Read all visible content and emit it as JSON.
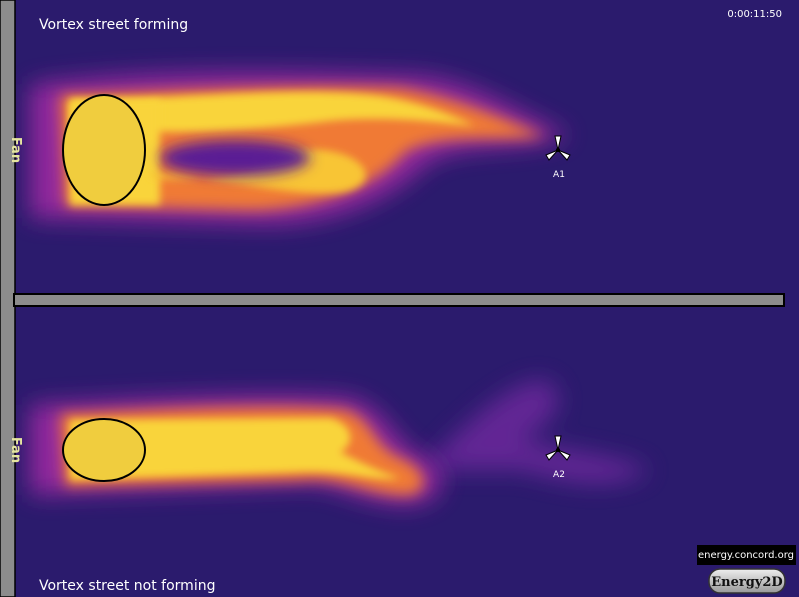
{
  "header": {
    "time": "0:00:11:50"
  },
  "panels": [
    {
      "caption": "Vortex street forming",
      "fan": "Fan",
      "anemometer": "A1"
    },
    {
      "caption": "Vortex street not forming",
      "fan": "Fan",
      "anemometer": "A2"
    }
  ],
  "footer": {
    "link": "energy.concord.org",
    "logo": "Energy2D"
  }
}
